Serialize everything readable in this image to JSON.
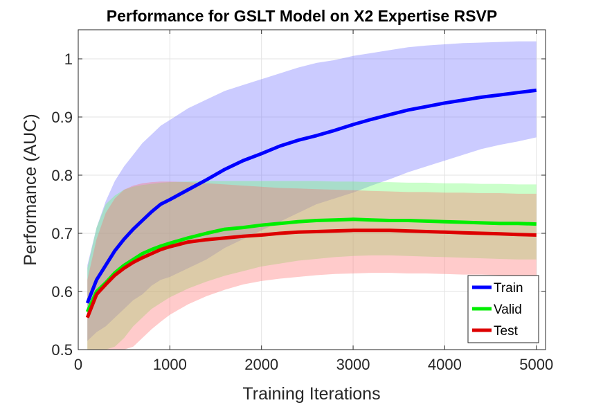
{
  "chart_data": {
    "type": "line",
    "title": "Performance for GSLT Model on X2 Expertise RSVP",
    "xlabel": "Training Iterations",
    "ylabel": "Performance (AUC)",
    "xlim": [
      0,
      5100
    ],
    "ylim": [
      0.5,
      1.05
    ],
    "xticks": [
      0,
      1000,
      2000,
      3000,
      4000,
      5000
    ],
    "xtick_labels": [
      "0",
      "1000",
      "2000",
      "3000",
      "4000",
      "5000"
    ],
    "yticks": [
      0.5,
      0.6,
      0.7,
      0.8,
      0.9,
      1.0
    ],
    "ytick_labels": [
      "0.5",
      "0.6",
      "0.7",
      "0.8",
      "0.9",
      "1"
    ],
    "grid": true,
    "legend_position": "bottom-right",
    "x": [
      100,
      200,
      300,
      400,
      500,
      600,
      700,
      800,
      900,
      1000,
      1200,
      1400,
      1600,
      1800,
      2000,
      2200,
      2400,
      2600,
      2800,
      3000,
      3200,
      3400,
      3600,
      3800,
      4000,
      4200,
      4400,
      4600,
      4800,
      5000
    ],
    "series": [
      {
        "name": "Train",
        "color": "#0000ff",
        "band_color": "#6b6bff",
        "values": [
          0.58,
          0.62,
          0.645,
          0.67,
          0.69,
          0.707,
          0.722,
          0.737,
          0.75,
          0.758,
          0.775,
          0.792,
          0.81,
          0.825,
          0.837,
          0.85,
          0.86,
          0.868,
          0.877,
          0.887,
          0.896,
          0.904,
          0.912,
          0.918,
          0.924,
          0.929,
          0.934,
          0.938,
          0.942,
          0.946
        ],
        "upper": [
          0.645,
          0.71,
          0.755,
          0.79,
          0.815,
          0.835,
          0.855,
          0.87,
          0.885,
          0.895,
          0.915,
          0.93,
          0.945,
          0.955,
          0.965,
          0.975,
          0.985,
          0.993,
          0.998,
          1.005,
          1.01,
          1.015,
          1.02,
          1.023,
          1.025,
          1.027,
          1.028,
          1.029,
          1.03,
          1.03
        ],
        "lower": [
          0.515,
          0.53,
          0.54,
          0.555,
          0.57,
          0.585,
          0.595,
          0.61,
          0.62,
          0.625,
          0.64,
          0.655,
          0.675,
          0.69,
          0.705,
          0.72,
          0.735,
          0.75,
          0.76,
          0.77,
          0.782,
          0.793,
          0.805,
          0.815,
          0.825,
          0.835,
          0.845,
          0.852,
          0.858,
          0.865
        ]
      },
      {
        "name": "Valid",
        "color": "#00ee00",
        "band_color": "#66ff66",
        "values": [
          0.565,
          0.6,
          0.615,
          0.632,
          0.645,
          0.655,
          0.665,
          0.672,
          0.678,
          0.683,
          0.692,
          0.7,
          0.707,
          0.71,
          0.714,
          0.717,
          0.72,
          0.722,
          0.723,
          0.724,
          0.723,
          0.722,
          0.722,
          0.721,
          0.72,
          0.719,
          0.718,
          0.717,
          0.717,
          0.716
        ],
        "upper": [
          0.64,
          0.71,
          0.75,
          0.765,
          0.775,
          0.78,
          0.783,
          0.785,
          0.787,
          0.788,
          0.789,
          0.79,
          0.79,
          0.79,
          0.79,
          0.79,
          0.79,
          0.79,
          0.789,
          0.789,
          0.788,
          0.788,
          0.787,
          0.787,
          0.786,
          0.786,
          0.785,
          0.785,
          0.784,
          0.784
        ],
        "lower": [
          0.5,
          0.5,
          0.5,
          0.505,
          0.52,
          0.54,
          0.555,
          0.57,
          0.58,
          0.59,
          0.605,
          0.617,
          0.627,
          0.635,
          0.643,
          0.648,
          0.653,
          0.656,
          0.659,
          0.661,
          0.662,
          0.662,
          0.661,
          0.66,
          0.659,
          0.658,
          0.657,
          0.656,
          0.655,
          0.655
        ]
      },
      {
        "name": "Test",
        "color": "#dd0000",
        "band_color": "#ff6b6b",
        "values": [
          0.555,
          0.595,
          0.612,
          0.628,
          0.64,
          0.65,
          0.658,
          0.665,
          0.672,
          0.677,
          0.685,
          0.689,
          0.692,
          0.695,
          0.697,
          0.7,
          0.702,
          0.703,
          0.704,
          0.705,
          0.705,
          0.705,
          0.704,
          0.703,
          0.702,
          0.701,
          0.7,
          0.699,
          0.698,
          0.697
        ],
        "upper": [
          0.62,
          0.69,
          0.735,
          0.76,
          0.775,
          0.782,
          0.786,
          0.788,
          0.789,
          0.789,
          0.788,
          0.786,
          0.784,
          0.782,
          0.78,
          0.778,
          0.777,
          0.776,
          0.775,
          0.774,
          0.773,
          0.772,
          0.771,
          0.771,
          0.77,
          0.77,
          0.769,
          0.769,
          0.768,
          0.768
        ],
        "lower": [
          0.49,
          0.5,
          0.5,
          0.5,
          0.5,
          0.505,
          0.52,
          0.535,
          0.548,
          0.56,
          0.578,
          0.592,
          0.603,
          0.612,
          0.618,
          0.622,
          0.625,
          0.628,
          0.63,
          0.631,
          0.632,
          0.632,
          0.631,
          0.631,
          0.63,
          0.629,
          0.629,
          0.628,
          0.628,
          0.627
        ]
      }
    ]
  }
}
